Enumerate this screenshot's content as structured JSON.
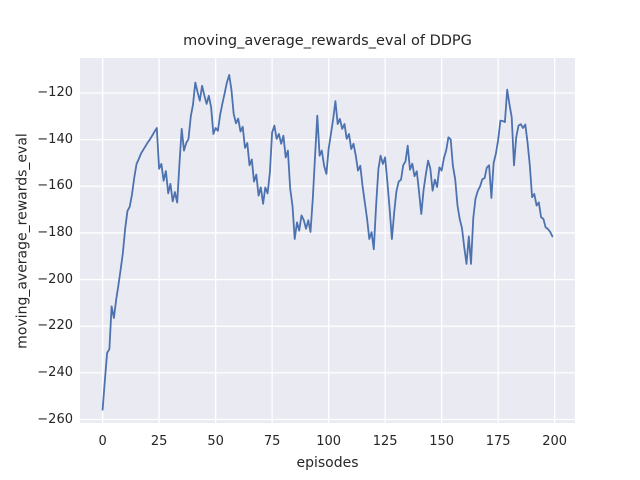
{
  "figure": {
    "background": "#ffffff",
    "axes_background": "#eaeaf2",
    "grid_color": "#ffffff",
    "text_color": "#262626"
  },
  "chart_data": {
    "type": "line",
    "title": "moving_average_rewards_eval of DDPG",
    "xlabel": "episodes",
    "ylabel": "moving_average_rewards_eval",
    "legend": null,
    "grid": true,
    "line_color": "#4c72b0",
    "line_width": 1.8,
    "axes_bg": "#eaeaf2",
    "xlim": [
      -10,
      209
    ],
    "ylim": [
      -261.5,
      -105.0
    ],
    "x_start": 0,
    "x_step": 1,
    "xticks": [
      {
        "value": 0,
        "label": "0"
      },
      {
        "value": 25,
        "label": "25"
      },
      {
        "value": 50,
        "label": "50"
      },
      {
        "value": 75,
        "label": "75"
      },
      {
        "value": 100,
        "label": "100"
      },
      {
        "value": 125,
        "label": "125"
      },
      {
        "value": 150,
        "label": "150"
      },
      {
        "value": 175,
        "label": "175"
      },
      {
        "value": 200,
        "label": "200"
      }
    ],
    "yticks": [
      {
        "value": -120,
        "label": "−120"
      },
      {
        "value": -140,
        "label": "−140"
      },
      {
        "value": -160,
        "label": "−160"
      },
      {
        "value": -180,
        "label": "−180"
      },
      {
        "value": -200,
        "label": "−200"
      },
      {
        "value": -220,
        "label": "−220"
      },
      {
        "value": -240,
        "label": "−240"
      },
      {
        "value": -260,
        "label": "−260"
      }
    ],
    "values": [
      -255.8,
      -243.0,
      -231.5,
      -229.8,
      -211.5,
      -216.5,
      -208.5,
      -202.5,
      -195.5,
      -188.5,
      -178.0,
      -170.5,
      -168.8,
      -163.5,
      -156.5,
      -150.5,
      -148.3,
      -146.0,
      -144.3,
      -142.8,
      -141.2,
      -139.8,
      -138.2,
      -136.5,
      -135.0,
      -152.5,
      -150.4,
      -157.6,
      -153.5,
      -163.0,
      -159.0,
      -166.5,
      -162.5,
      -167.0,
      -150.0,
      -135.4,
      -144.7,
      -141.5,
      -139.7,
      -130.0,
      -125.0,
      -115.5,
      -119.5,
      -123.3,
      -116.9,
      -121.0,
      -124.7,
      -121.2,
      -126.1,
      -137.6,
      -135.0,
      -136.2,
      -129.5,
      -124.5,
      -120.0,
      -115.5,
      -112.3,
      -118.5,
      -129.0,
      -133.0,
      -131.0,
      -136.5,
      -134.5,
      -143.5,
      -141.5,
      -151.0,
      -148.5,
      -158.0,
      -155.0,
      -164.0,
      -160.5,
      -167.5,
      -160.5,
      -163.0,
      -154.0,
      -137.0,
      -134.0,
      -139.7,
      -137.6,
      -141.8,
      -138.3,
      -147.6,
      -144.7,
      -161.1,
      -168.4,
      -182.6,
      -175.5,
      -179.0,
      -172.5,
      -174.5,
      -178.2,
      -174.6,
      -179.6,
      -165.3,
      -146.7,
      -129.7,
      -146.9,
      -144.7,
      -151.2,
      -154.7,
      -144.0,
      -137.6,
      -131.1,
      -123.5,
      -133.3,
      -131.1,
      -135.4,
      -133.3,
      -139.7,
      -137.6,
      -144.0,
      -141.8,
      -146.9,
      -153.3,
      -151.2,
      -159.7,
      -166.9,
      -174.0,
      -182.6,
      -179.7,
      -187.0,
      -168.3,
      -152.6,
      -146.9,
      -150.4,
      -147.6,
      -158.3,
      -170.0,
      -182.6,
      -171.1,
      -162.2,
      -158.0,
      -157.2,
      -151.0,
      -149.3,
      -142.6,
      -152.9,
      -150.3,
      -155.7,
      -153.6,
      -162.2,
      -171.9,
      -161.5,
      -155.0,
      -149.0,
      -152.4,
      -161.9,
      -157.2,
      -160.3,
      -151.9,
      -153.3,
      -148.0,
      -144.6,
      -139.0,
      -139.9,
      -151.2,
      -157.0,
      -168.3,
      -174.0,
      -178.0,
      -186.0,
      -193.3,
      -181.5,
      -193.3,
      -173.5,
      -165.3,
      -162.0,
      -160.0,
      -157.0,
      -156.5,
      -152.0,
      -151.0,
      -165.0,
      -150.0,
      -146.0,
      -140.0,
      -131.9,
      -132.0,
      -132.5,
      -118.6,
      -125.0,
      -130.4,
      -151.0,
      -139.0,
      -134.0,
      -133.4,
      -135.0,
      -133.5,
      -141.0,
      -151.0,
      -164.7,
      -163.3,
      -168.3,
      -166.9,
      -173.3,
      -174.0,
      -177.6,
      -178.3,
      -179.5,
      -181.5
    ]
  }
}
